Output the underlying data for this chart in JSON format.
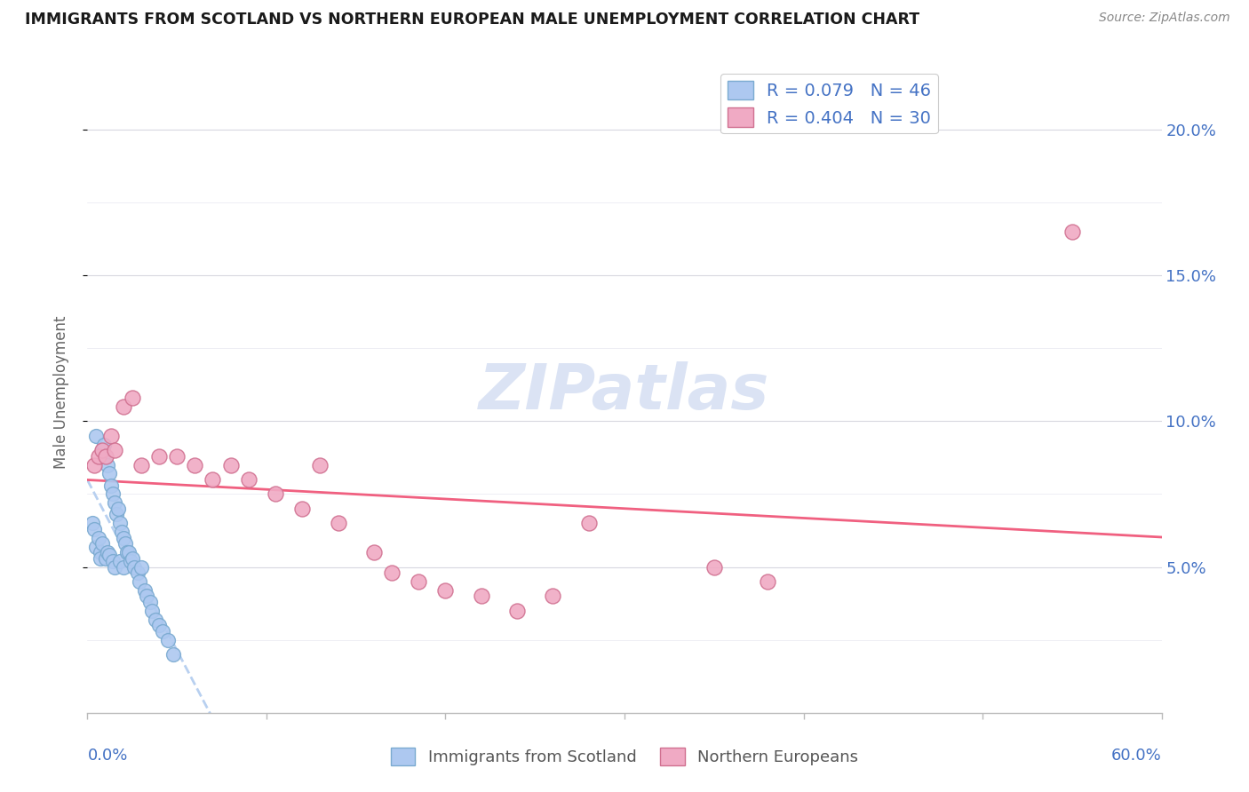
{
  "title": "IMMIGRANTS FROM SCOTLAND VS NORTHERN EUROPEAN MALE UNEMPLOYMENT CORRELATION CHART",
  "source": "Source: ZipAtlas.com",
  "ylabel": "Male Unemployment",
  "yticks": [
    5.0,
    10.0,
    15.0,
    20.0
  ],
  "ytick_labels": [
    "5.0%",
    "10.0%",
    "15.0%",
    "20.0%"
  ],
  "xlim": [
    0.0,
    60.0
  ],
  "ylim": [
    0.0,
    22.0
  ],
  "scotland_R": 0.079,
  "scotland_N": 46,
  "northern_R": 0.404,
  "northern_N": 30,
  "scotland_color": "#adc8f0",
  "northern_color": "#f0aac4",
  "scotland_edge": "#7aaad0",
  "northern_edge": "#d07090",
  "trendline_scotland_color": "#b8d0f0",
  "trendline_northern_color": "#f06080",
  "watermark_color": "#ccd8f0",
  "legend_text_color": "#4472c4",
  "scotland_x": [
    0.3,
    0.4,
    0.5,
    0.5,
    0.6,
    0.7,
    0.7,
    0.8,
    0.8,
    0.9,
    1.0,
    1.0,
    1.1,
    1.1,
    1.2,
    1.2,
    1.3,
    1.4,
    1.4,
    1.5,
    1.5,
    1.6,
    1.7,
    1.8,
    1.8,
    1.9,
    2.0,
    2.0,
    2.1,
    2.2,
    2.3,
    2.4,
    2.5,
    2.6,
    2.8,
    2.9,
    3.0,
    3.2,
    3.3,
    3.5,
    3.6,
    3.8,
    4.0,
    4.2,
    4.5,
    4.8
  ],
  "scotland_y": [
    6.5,
    6.3,
    9.5,
    5.7,
    6.0,
    5.5,
    5.3,
    9.0,
    5.8,
    9.2,
    8.8,
    5.3,
    8.5,
    5.5,
    8.2,
    5.4,
    7.8,
    7.5,
    5.2,
    7.2,
    5.0,
    6.8,
    7.0,
    6.5,
    5.2,
    6.2,
    6.0,
    5.0,
    5.8,
    5.5,
    5.5,
    5.2,
    5.3,
    5.0,
    4.8,
    4.5,
    5.0,
    4.2,
    4.0,
    3.8,
    3.5,
    3.2,
    3.0,
    2.8,
    2.5,
    2.0
  ],
  "northern_x": [
    0.4,
    0.6,
    0.8,
    1.0,
    1.3,
    1.5,
    2.0,
    2.5,
    3.0,
    4.0,
    5.0,
    6.0,
    7.0,
    8.0,
    9.0,
    10.5,
    12.0,
    13.0,
    14.0,
    16.0,
    17.0,
    18.5,
    20.0,
    22.0,
    24.0,
    26.0,
    28.0,
    35.0,
    38.0,
    55.0
  ],
  "northern_y": [
    8.5,
    8.8,
    9.0,
    8.8,
    9.5,
    9.0,
    10.5,
    10.8,
    8.5,
    8.8,
    8.8,
    8.5,
    8.0,
    8.5,
    8.0,
    7.5,
    7.0,
    8.5,
    6.5,
    5.5,
    4.8,
    4.5,
    4.2,
    4.0,
    3.5,
    4.0,
    6.5,
    5.0,
    4.5,
    16.5
  ]
}
